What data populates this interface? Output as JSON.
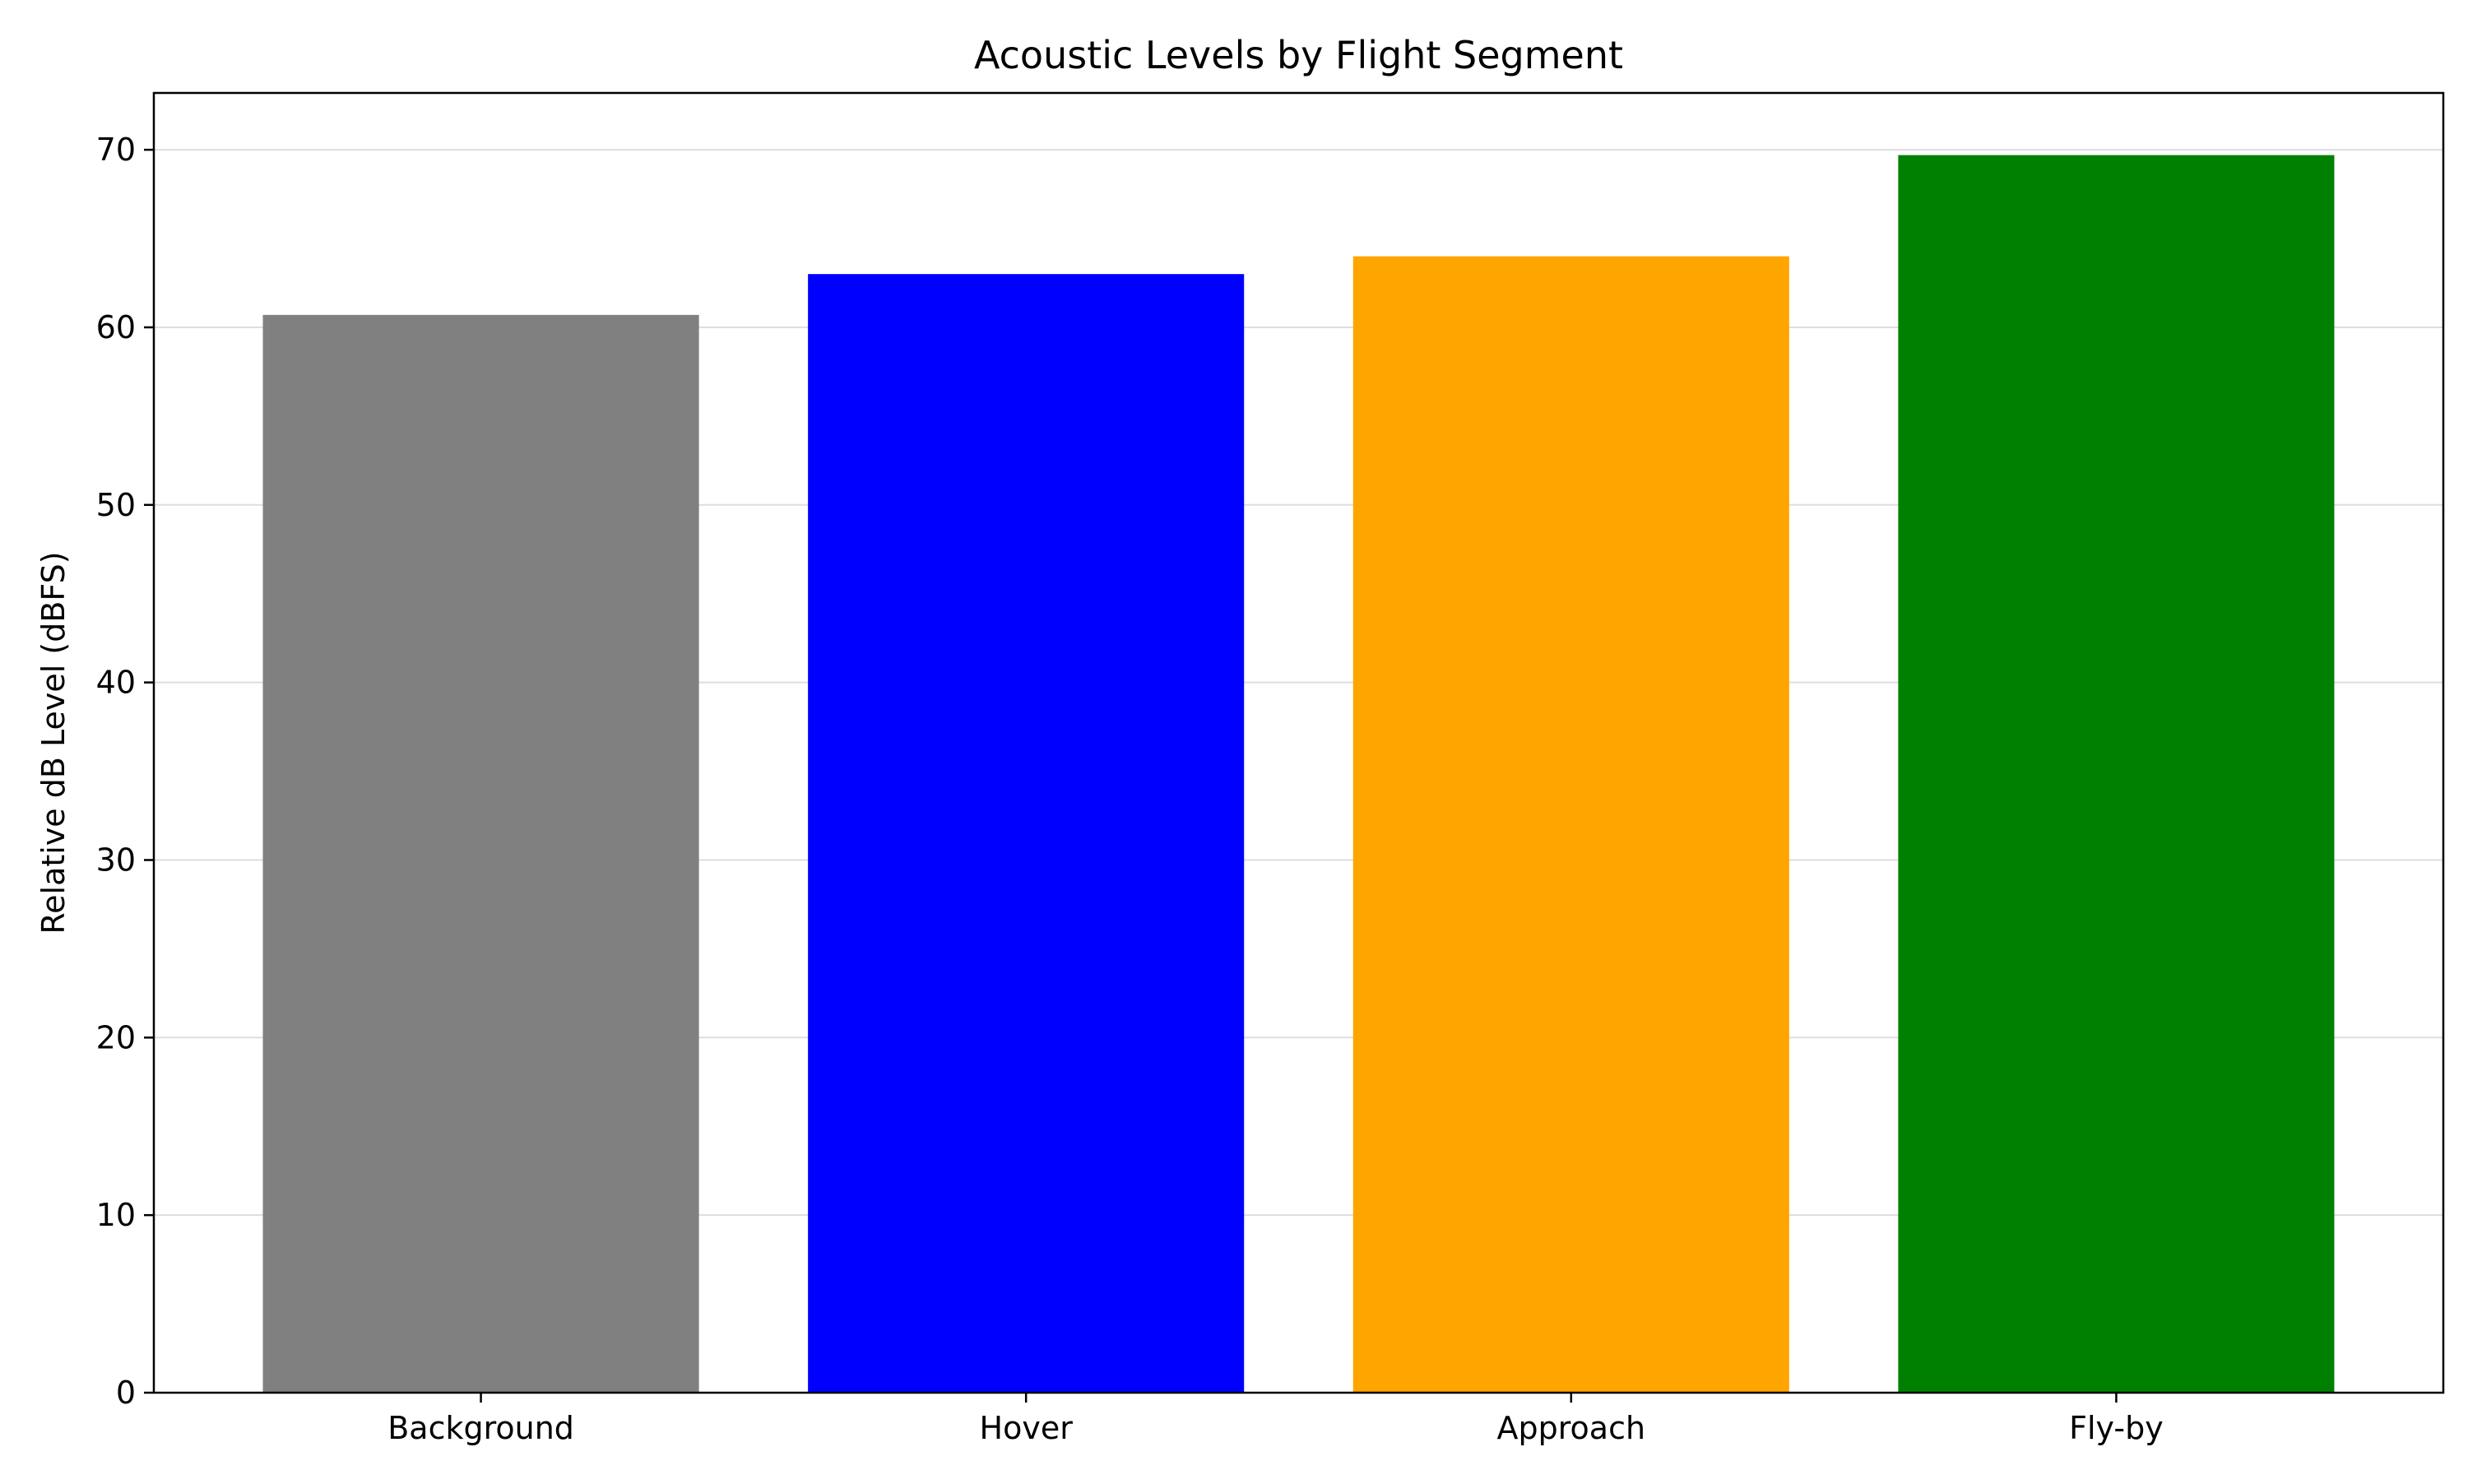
{
  "chart_data": {
    "type": "bar",
    "title": "Acoustic Levels by Flight Segment",
    "xlabel": "",
    "ylabel": "Relative dB Level (dBFS)",
    "categories": [
      "Background",
      "Hover",
      "Approach",
      "Fly-by"
    ],
    "values": [
      60.7,
      63.0,
      64.0,
      69.7
    ],
    "colors": [
      "#808080",
      "#0000ff",
      "#ffa500",
      "#008000"
    ],
    "ylim": [
      0,
      73.2
    ],
    "yticks": [
      0,
      10,
      20,
      30,
      40,
      50,
      60,
      70
    ],
    "grid": true,
    "grid_color": "#dddddd",
    "legend": false
  }
}
